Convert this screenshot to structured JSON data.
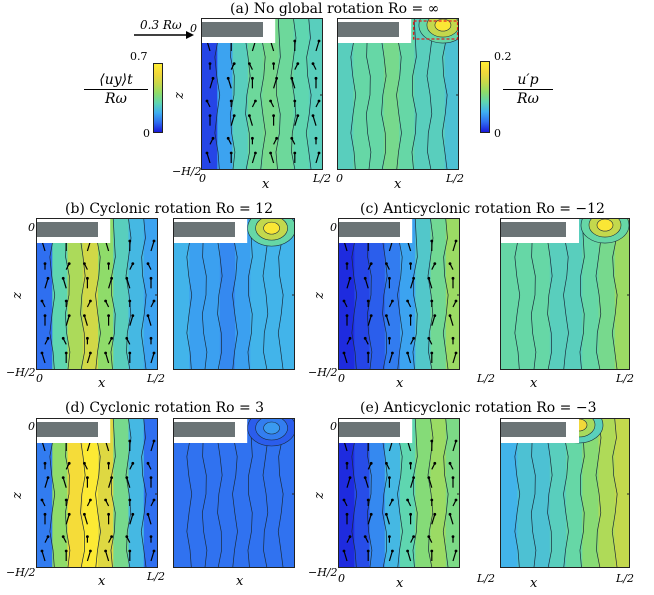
{
  "figure": {
    "panel_a_title": "(a) No global rotation Ro = ∞",
    "panel_b_title": "(b) Cyclonic rotation Ro = 12",
    "panel_c_title": "(c) Anticyclonic rotation Ro = −12",
    "panel_d_title": "(d) Cyclonic rotation Ro = 3",
    "panel_e_title": "(e) Anticyclonic rotation Ro = −3",
    "xlabel": "x",
    "zlabel": "z",
    "xtick_left": "0",
    "xtick_right": "L/2",
    "ztick_top": "0",
    "ztick_bottom": "−H/2",
    "reference_arrow_label": "0.3 Rω",
    "colorbar_left": {
      "label_numerator": "⟨uy⟩t",
      "label_denominator": "Rω",
      "max_label": "0.7",
      "min_label": "0",
      "colormap": [
        "#1a1adb",
        "#2f6ff0",
        "#3fb0f0",
        "#5fd6b0",
        "#8fdc6a",
        "#c9d84a",
        "#f2d83a",
        "#ffee33"
      ]
    },
    "colorbar_right": {
      "label_numerator": "u′p",
      "label_denominator": "Rω",
      "max_label": "0.2",
      "min_label": "0",
      "colormap": [
        "#1a1adb",
        "#2f6ff0",
        "#3fb0f0",
        "#5fd6b0",
        "#8fdc6a",
        "#c9d84a",
        "#f2d83a",
        "#ffee33"
      ]
    },
    "obstacle_color": "#6b7476",
    "highlight_box_color": "#e02020"
  },
  "chart_data": {
    "type": "heatmap",
    "x_range": [
      0,
      0.5
    ],
    "z_range": [
      -0.5,
      0
    ],
    "panels": [
      {
        "id": "a",
        "mean_velocity_bands": [
          0.05,
          0.18,
          0.28,
          0.33,
          0.35,
          0.33,
          0.3,
          0.28
        ],
        "fluctuation_bands": [
          0.08,
          0.09,
          0.09,
          0.1,
          0.09,
          0.08,
          0.08,
          0.07
        ],
        "fluctuation_hotspot": {
          "x": 0.43,
          "z": -0.02,
          "value": 0.2
        }
      },
      {
        "id": "b",
        "mean_velocity_bands": [
          0.1,
          0.3,
          0.45,
          0.52,
          0.4,
          0.28,
          0.22,
          0.18
        ],
        "fluctuation_bands": [
          0.06,
          0.05,
          0.05,
          0.04,
          0.05,
          0.06,
          0.06,
          0.06
        ],
        "fluctuation_hotspot": {
          "x": 0.4,
          "z": -0.03,
          "value": 0.2
        }
      },
      {
        "id": "c",
        "mean_velocity_bands": [
          0.02,
          0.05,
          0.08,
          0.12,
          0.18,
          0.26,
          0.34,
          0.42
        ],
        "fluctuation_bands": [
          0.09,
          0.09,
          0.09,
          0.08,
          0.08,
          0.09,
          0.1,
          0.12
        ],
        "fluctuation_hotspot": {
          "x": 0.4,
          "z": -0.02,
          "value": 0.2
        }
      },
      {
        "id": "d",
        "mean_velocity_bands": [
          0.12,
          0.4,
          0.62,
          0.68,
          0.55,
          0.35,
          0.22,
          0.1
        ],
        "fluctuation_bands": [
          0.03,
          0.03,
          0.03,
          0.03,
          0.03,
          0.03,
          0.03,
          0.03
        ],
        "fluctuation_hotspot": {
          "x": 0.4,
          "z": -0.03,
          "value": 0.05
        }
      },
      {
        "id": "e",
        "mean_velocity_bands": [
          0.02,
          0.06,
          0.14,
          0.22,
          0.3,
          0.38,
          0.42,
          0.36
        ],
        "fluctuation_bands": [
          0.06,
          0.07,
          0.07,
          0.08,
          0.09,
          0.11,
          0.13,
          0.14
        ],
        "fluctuation_hotspot": {
          "x": 0.3,
          "z": -0.02,
          "value": 0.18
        }
      }
    ]
  }
}
